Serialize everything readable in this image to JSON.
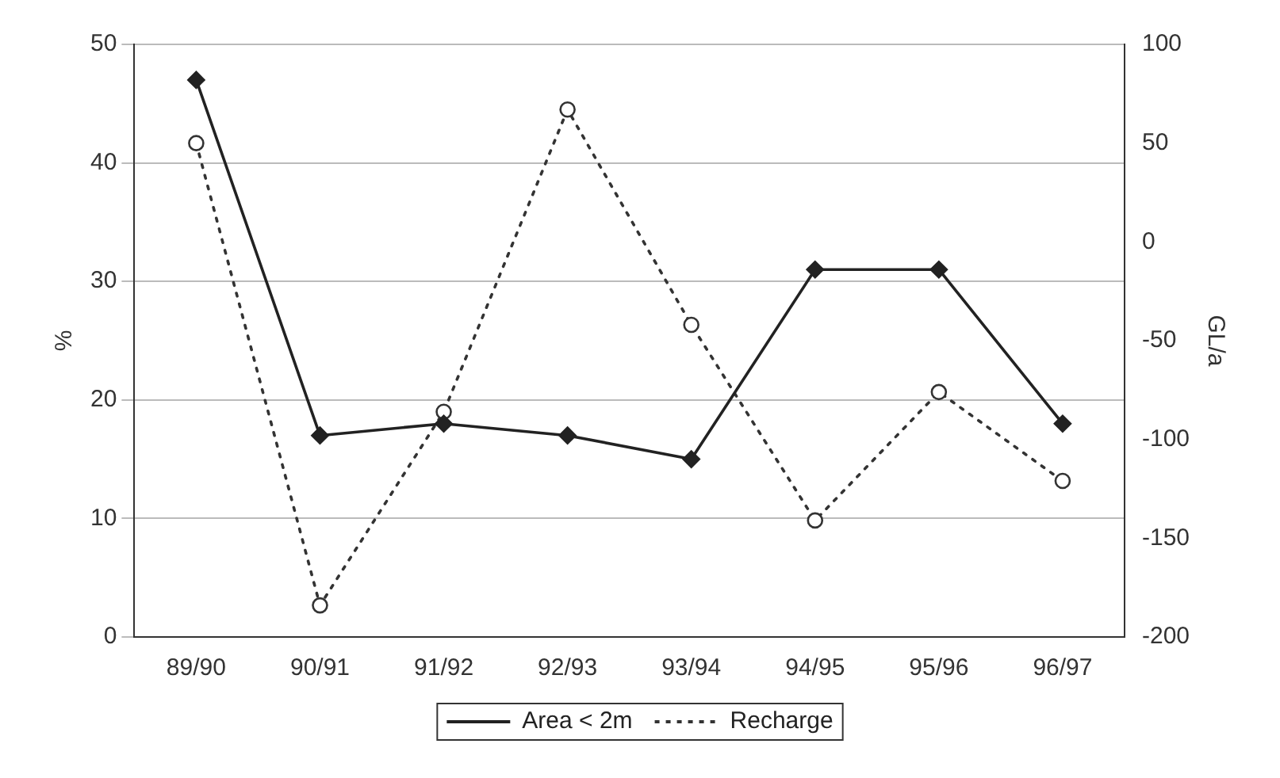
{
  "chart_data": {
    "type": "line",
    "categories": [
      "89/90",
      "90/91",
      "91/92",
      "92/93",
      "93/94",
      "94/95",
      "95/96",
      "96/97"
    ],
    "ylabel": "%",
    "y2label": "GL/a",
    "ylim": [
      0,
      50
    ],
    "yticks": [
      0,
      10,
      20,
      30,
      40,
      50
    ],
    "y2lim": [
      -200,
      100
    ],
    "y2ticks": [
      -200,
      -150,
      -100,
      -50,
      0,
      50,
      100
    ],
    "grid": "y",
    "legend": "bottom",
    "series": [
      {
        "name": "Area < 2m",
        "color": "#222222",
        "values": [
          47,
          17,
          18,
          17,
          15,
          31,
          31,
          18
        ],
        "marker": "diamond",
        "line_style": "solid"
      },
      {
        "name": "Recharge",
        "color": "#333333",
        "axis": "y2",
        "values": [
          50,
          -184,
          -86,
          67,
          -42,
          -141,
          -76,
          -121
        ],
        "marker": "circle",
        "line_style": "dotted"
      }
    ]
  }
}
